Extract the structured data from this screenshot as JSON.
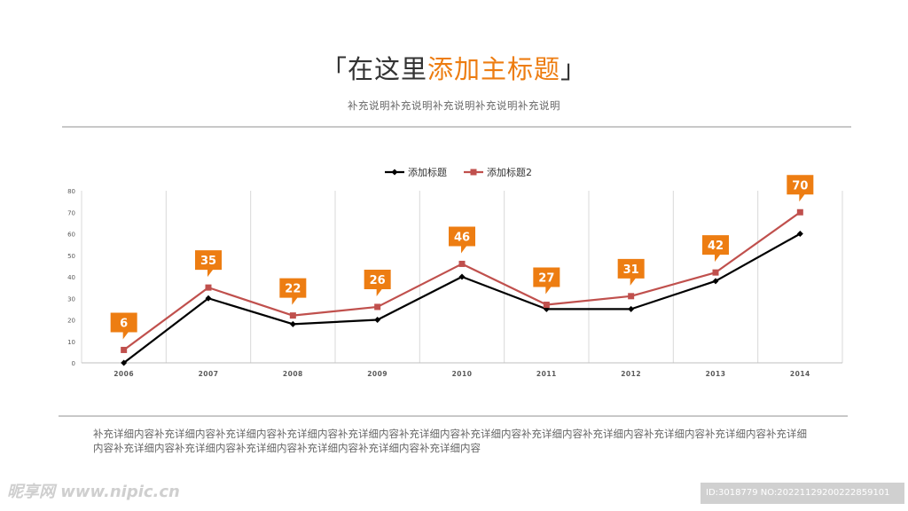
{
  "header": {
    "title_bracket_open": "「",
    "title_dark": "在这里",
    "title_highlight": "添加主标题",
    "title_bracket_close": "」",
    "subtitle": "补充说明补充说明补充说明补充说明补充说明"
  },
  "body_text": "补充详细内容补充详细内容补充详细内容补充详细内容补充详细内容补充详细内容补充详细内容补充详细内容补充详细内容补充详细内容补充详细内容补充详细内容补充详细内容补充详细内容补充详细内容补充详细内容补充详细内容补充详细内容",
  "watermark": "昵享网 www.nipic.cn",
  "image_id": "ID:3018779 NO:20221129200222859101",
  "colors": {
    "accent": "#ED7D12",
    "series1": "#000000",
    "series2": "#C0504D",
    "grid": "#d9d9d9"
  },
  "chart_data": {
    "type": "line",
    "title": "",
    "xlabel": "",
    "ylabel": "",
    "categories": [
      "2006",
      "2007",
      "2008",
      "2009",
      "2010",
      "2011",
      "2012",
      "2013",
      "2014"
    ],
    "ylim": [
      0,
      80
    ],
    "yticks": [
      0,
      10,
      20,
      30,
      40,
      50,
      60,
      70,
      80
    ],
    "grid": "vertical",
    "legend_position": "top-center",
    "series": [
      {
        "name": "添加标题",
        "values": [
          0,
          30,
          18,
          20,
          40,
          25,
          25,
          38,
          60
        ],
        "marker": "diamond"
      },
      {
        "name": "添加标题2",
        "values": [
          6,
          35,
          22,
          26,
          46,
          27,
          31,
          42,
          70
        ],
        "marker": "square",
        "data_labels": true
      }
    ]
  }
}
